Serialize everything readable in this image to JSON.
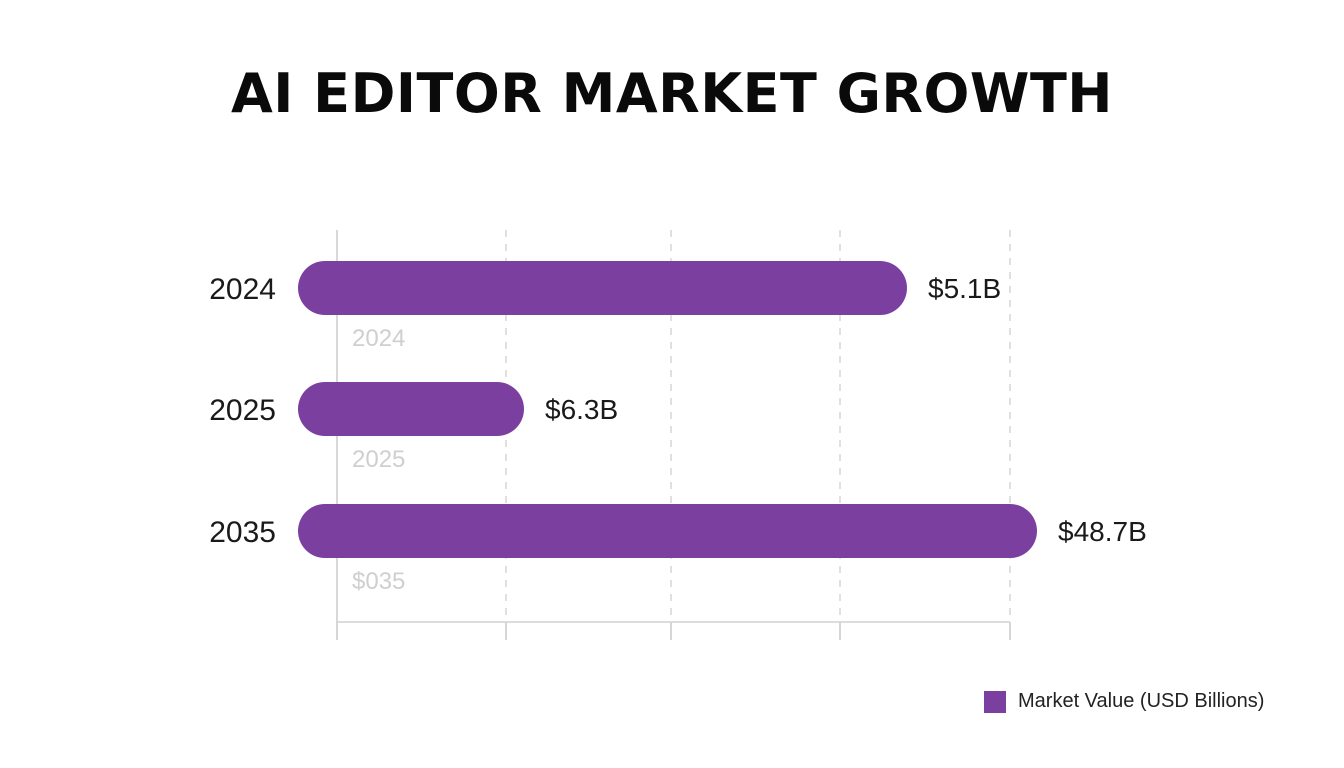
{
  "chart_data": {
    "type": "bar",
    "orientation": "horizontal",
    "title": "AI EDITOR MARKET GROWTH",
    "categories": [
      "2024",
      "2025",
      "2035"
    ],
    "series": [
      {
        "name": "Market Value (USD Billions)",
        "values": [
          5.1,
          6.3,
          48.7
        ],
        "value_labels": [
          "$5.1B",
          "$6.3B",
          "$48.7B"
        ],
        "color": "#7b3fa0"
      }
    ],
    "secondary_labels": [
      "2024",
      "2025",
      "$035"
    ],
    "grid": true,
    "legend": "bottom-right"
  }
}
